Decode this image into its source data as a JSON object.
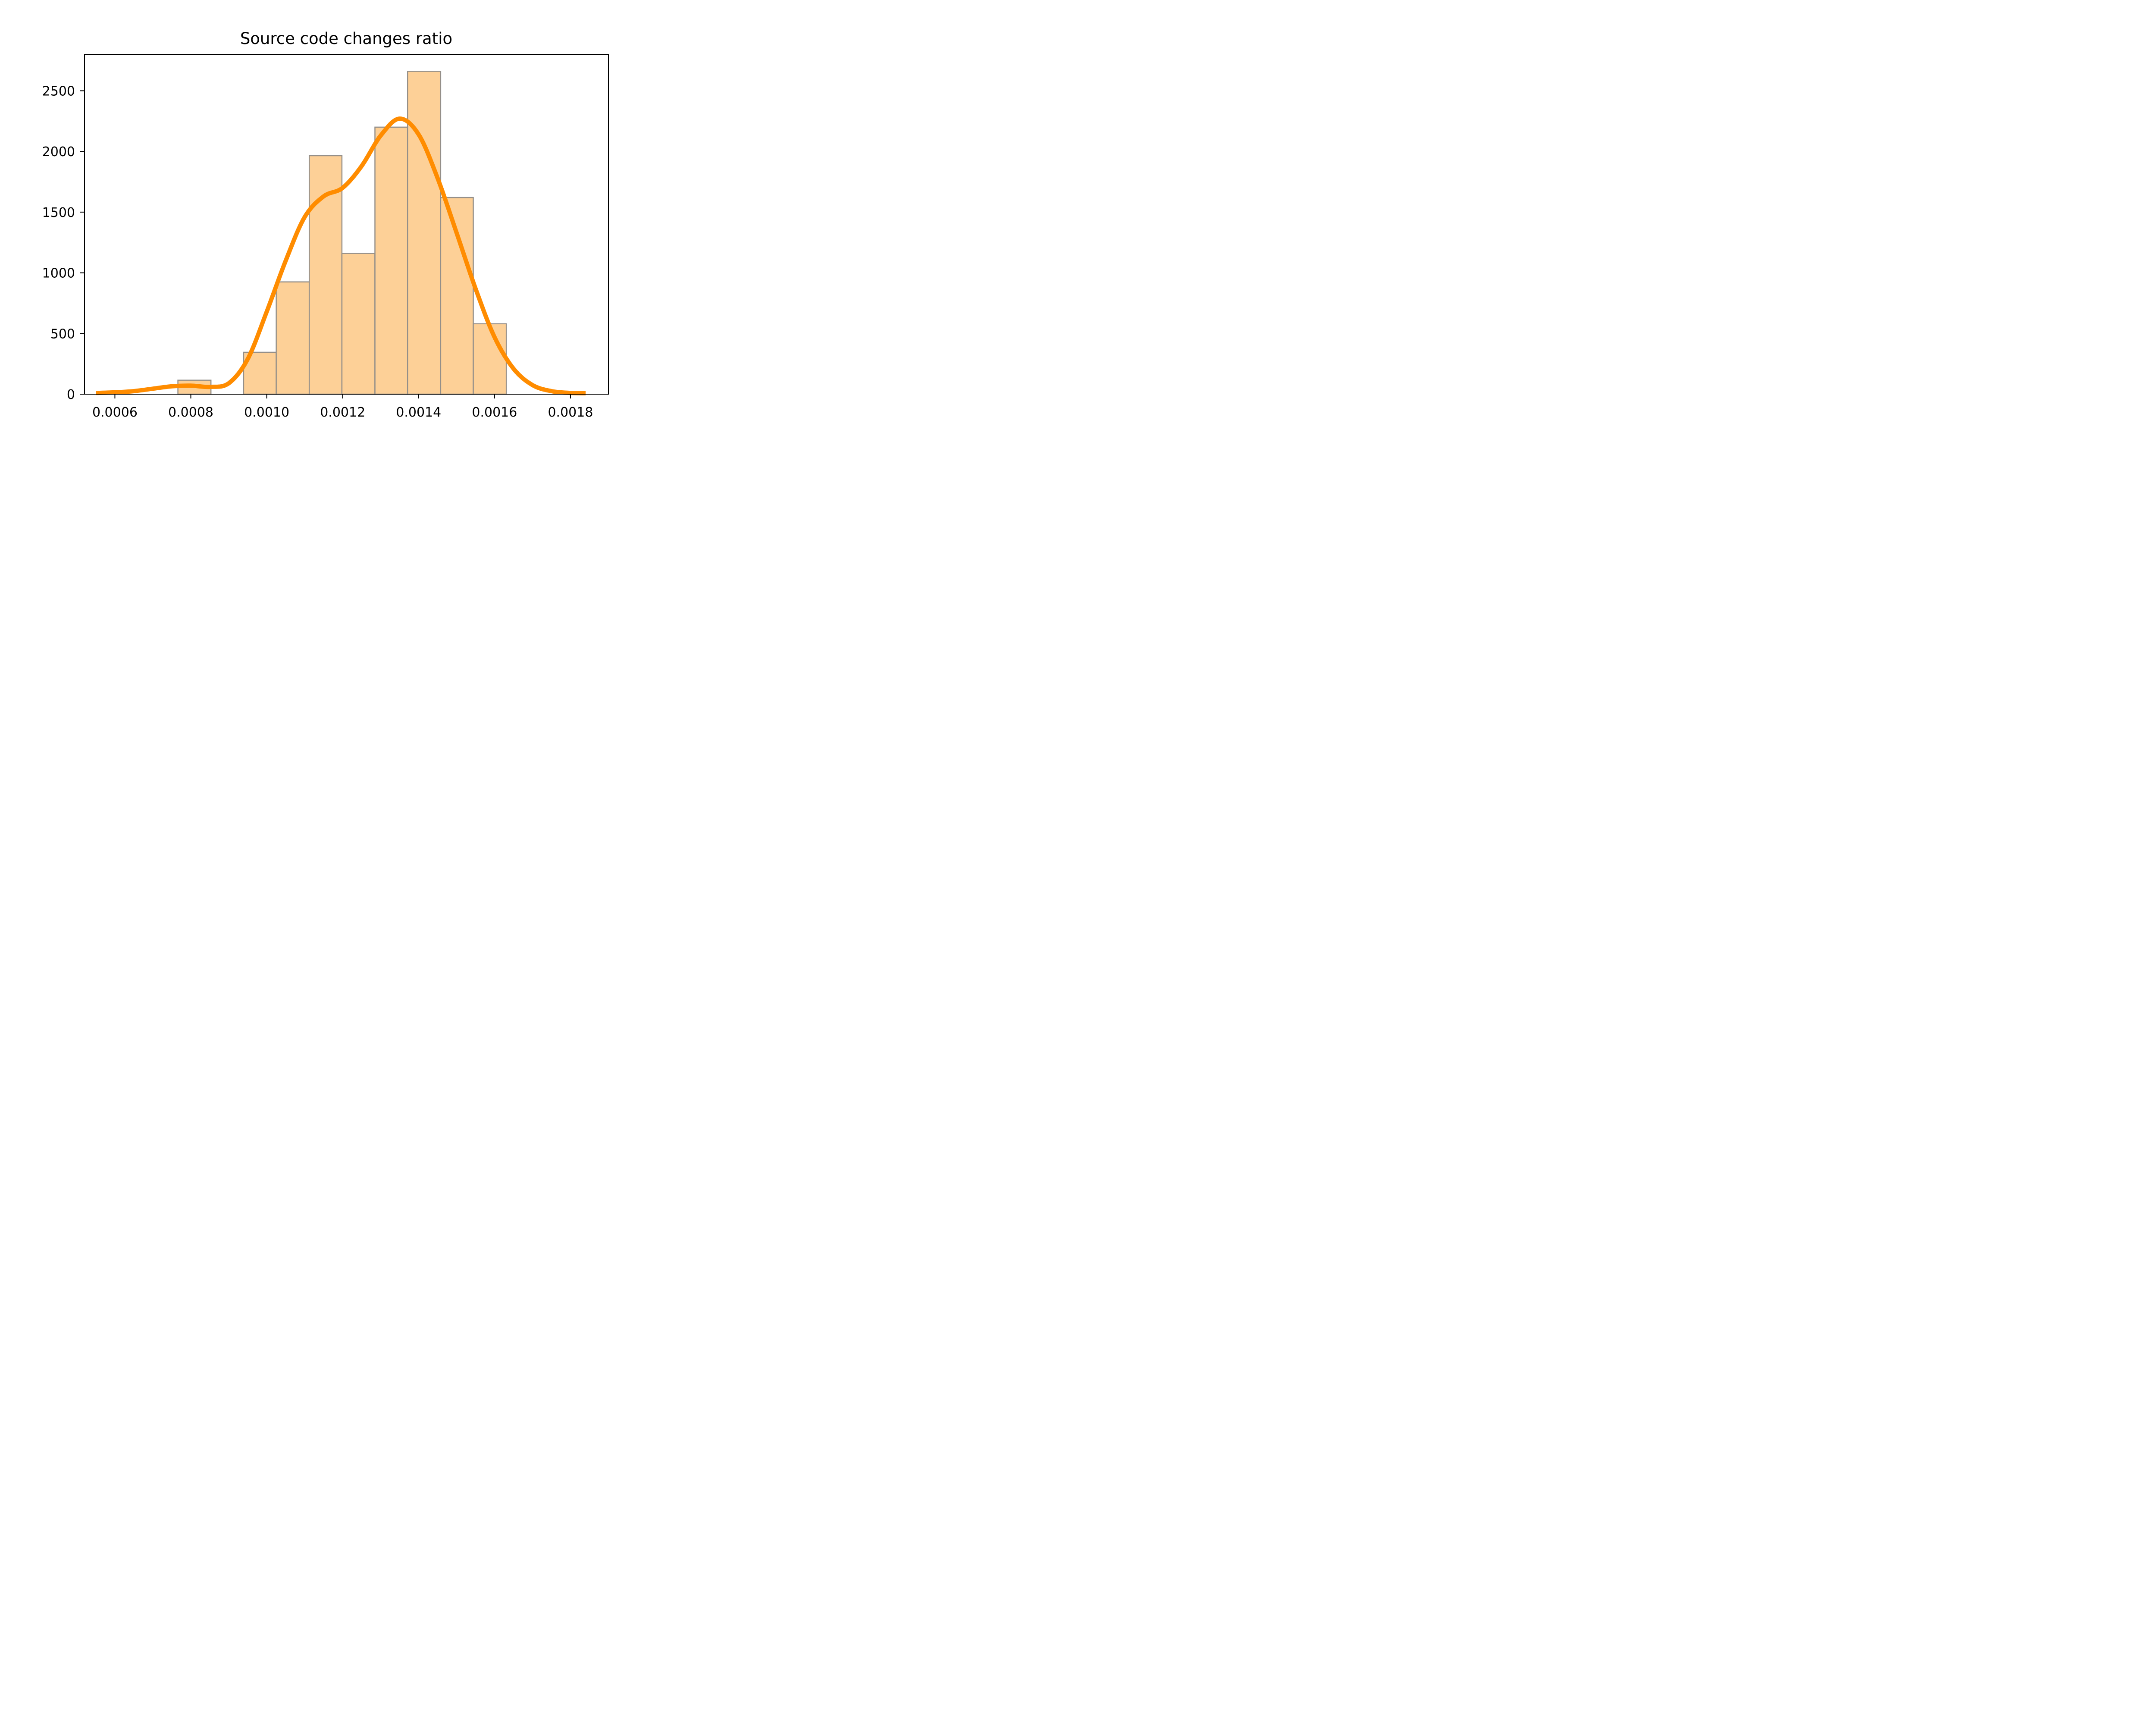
{
  "chart_data": {
    "type": "bar",
    "title": "Source code changes ratio",
    "xlabel": "",
    "ylabel": "",
    "xlim": [
      0.00052,
      0.0019
    ],
    "ylim": [
      0,
      2800
    ],
    "x_ticks": [
      0.0006,
      0.0008,
      0.001,
      0.0012,
      0.0014,
      0.0016,
      0.0018
    ],
    "x_tick_labels": [
      "0.0006",
      "0.0008",
      "0.0010",
      "0.0012",
      "0.0014",
      "0.0016",
      "0.0018"
    ],
    "y_ticks": [
      0,
      500,
      1000,
      1500,
      2000,
      2500
    ],
    "y_tick_labels": [
      "0",
      "500",
      "1000",
      "1500",
      "2000",
      "2500"
    ],
    "grid": false,
    "bins": [
      {
        "x0": 0.000766,
        "x1": 0.000853,
        "value": 115
      },
      {
        "x0": 0.000853,
        "x1": 0.000939,
        "value": 0
      },
      {
        "x0": 0.000939,
        "x1": 0.001025,
        "value": 345
      },
      {
        "x0": 0.001025,
        "x1": 0.001112,
        "value": 925
      },
      {
        "x0": 0.001112,
        "x1": 0.001198,
        "value": 1965
      },
      {
        "x0": 0.001198,
        "x1": 0.001285,
        "value": 1160
      },
      {
        "x0": 0.001285,
        "x1": 0.001371,
        "value": 2200
      },
      {
        "x0": 0.001371,
        "x1": 0.001458,
        "value": 2660
      },
      {
        "x0": 0.001458,
        "x1": 0.001544,
        "value": 1620
      },
      {
        "x0": 0.001544,
        "x1": 0.001631,
        "value": 580
      }
    ],
    "kde": {
      "x": [
        0.00055,
        0.0006,
        0.00065,
        0.0007,
        0.00075,
        0.0008,
        0.00085,
        0.0009,
        0.00095,
        0.001,
        0.00105,
        0.0011,
        0.00115,
        0.0012,
        0.00125,
        0.0013,
        0.00135,
        0.0014,
        0.00145,
        0.0015,
        0.00155,
        0.0016,
        0.00165,
        0.0017,
        0.00175,
        0.0018,
        0.00184
      ],
      "y": [
        10,
        15,
        25,
        45,
        65,
        70,
        60,
        90,
        290,
        680,
        1100,
        1460,
        1630,
        1700,
        1880,
        2130,
        2270,
        2140,
        1780,
        1330,
        870,
        470,
        210,
        75,
        25,
        10,
        8
      ]
    },
    "colors": {
      "bar_fill": "#fdd097",
      "bar_edge": "#948f89",
      "curve": "#ff8c00"
    }
  }
}
